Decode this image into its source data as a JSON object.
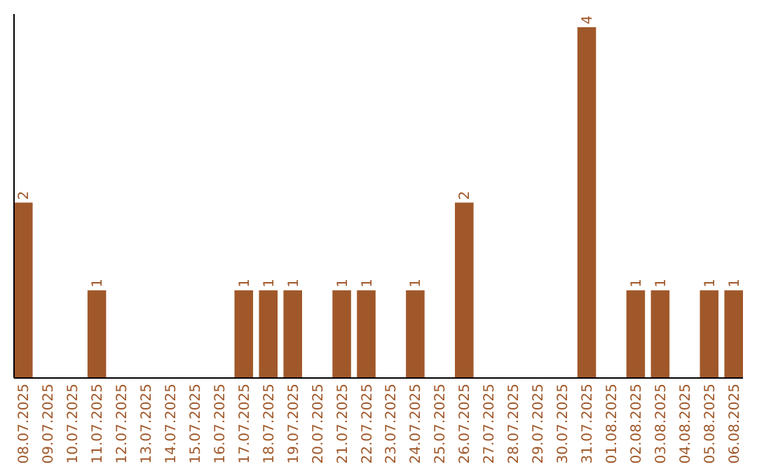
{
  "chart_data": {
    "type": "bar",
    "categories": [
      "08.07.2025",
      "09.07.2025",
      "10.07.2025",
      "11.07.2025",
      "12.07.2025",
      "13.07.2025",
      "14.07.2025",
      "15.07.2025",
      "16.07.2025",
      "17.07.2025",
      "18.07.2025",
      "19.07.2025",
      "20.07.2025",
      "21.07.2025",
      "22.07.2025",
      "23.07.2025",
      "24.07.2025",
      "25.07.2025",
      "26.07.2025",
      "27.07.2025",
      "28.07.2025",
      "29.07.2025",
      "30.07.2025",
      "31.07.2025",
      "01.08.2025",
      "02.08.2025",
      "03.08.2025",
      "04.08.2025",
      "05.08.2025",
      "06.08.2025"
    ],
    "values": [
      2,
      0,
      0,
      1,
      0,
      0,
      0,
      0,
      0,
      1,
      1,
      1,
      0,
      1,
      1,
      0,
      1,
      0,
      2,
      0,
      0,
      0,
      0,
      4,
      0,
      1,
      1,
      0,
      1,
      1
    ],
    "value_labels": [
      "2",
      null,
      null,
      "1",
      null,
      null,
      null,
      null,
      null,
      "1",
      "1",
      "1",
      null,
      "1",
      "1",
      null,
      "1",
      null,
      "2",
      null,
      null,
      null,
      null,
      "4",
      null,
      "1",
      "1",
      null,
      "1",
      "1"
    ],
    "color": "#a0582a",
    "ylim": [
      0,
      4.15
    ],
    "tick_labels": "x"
  }
}
